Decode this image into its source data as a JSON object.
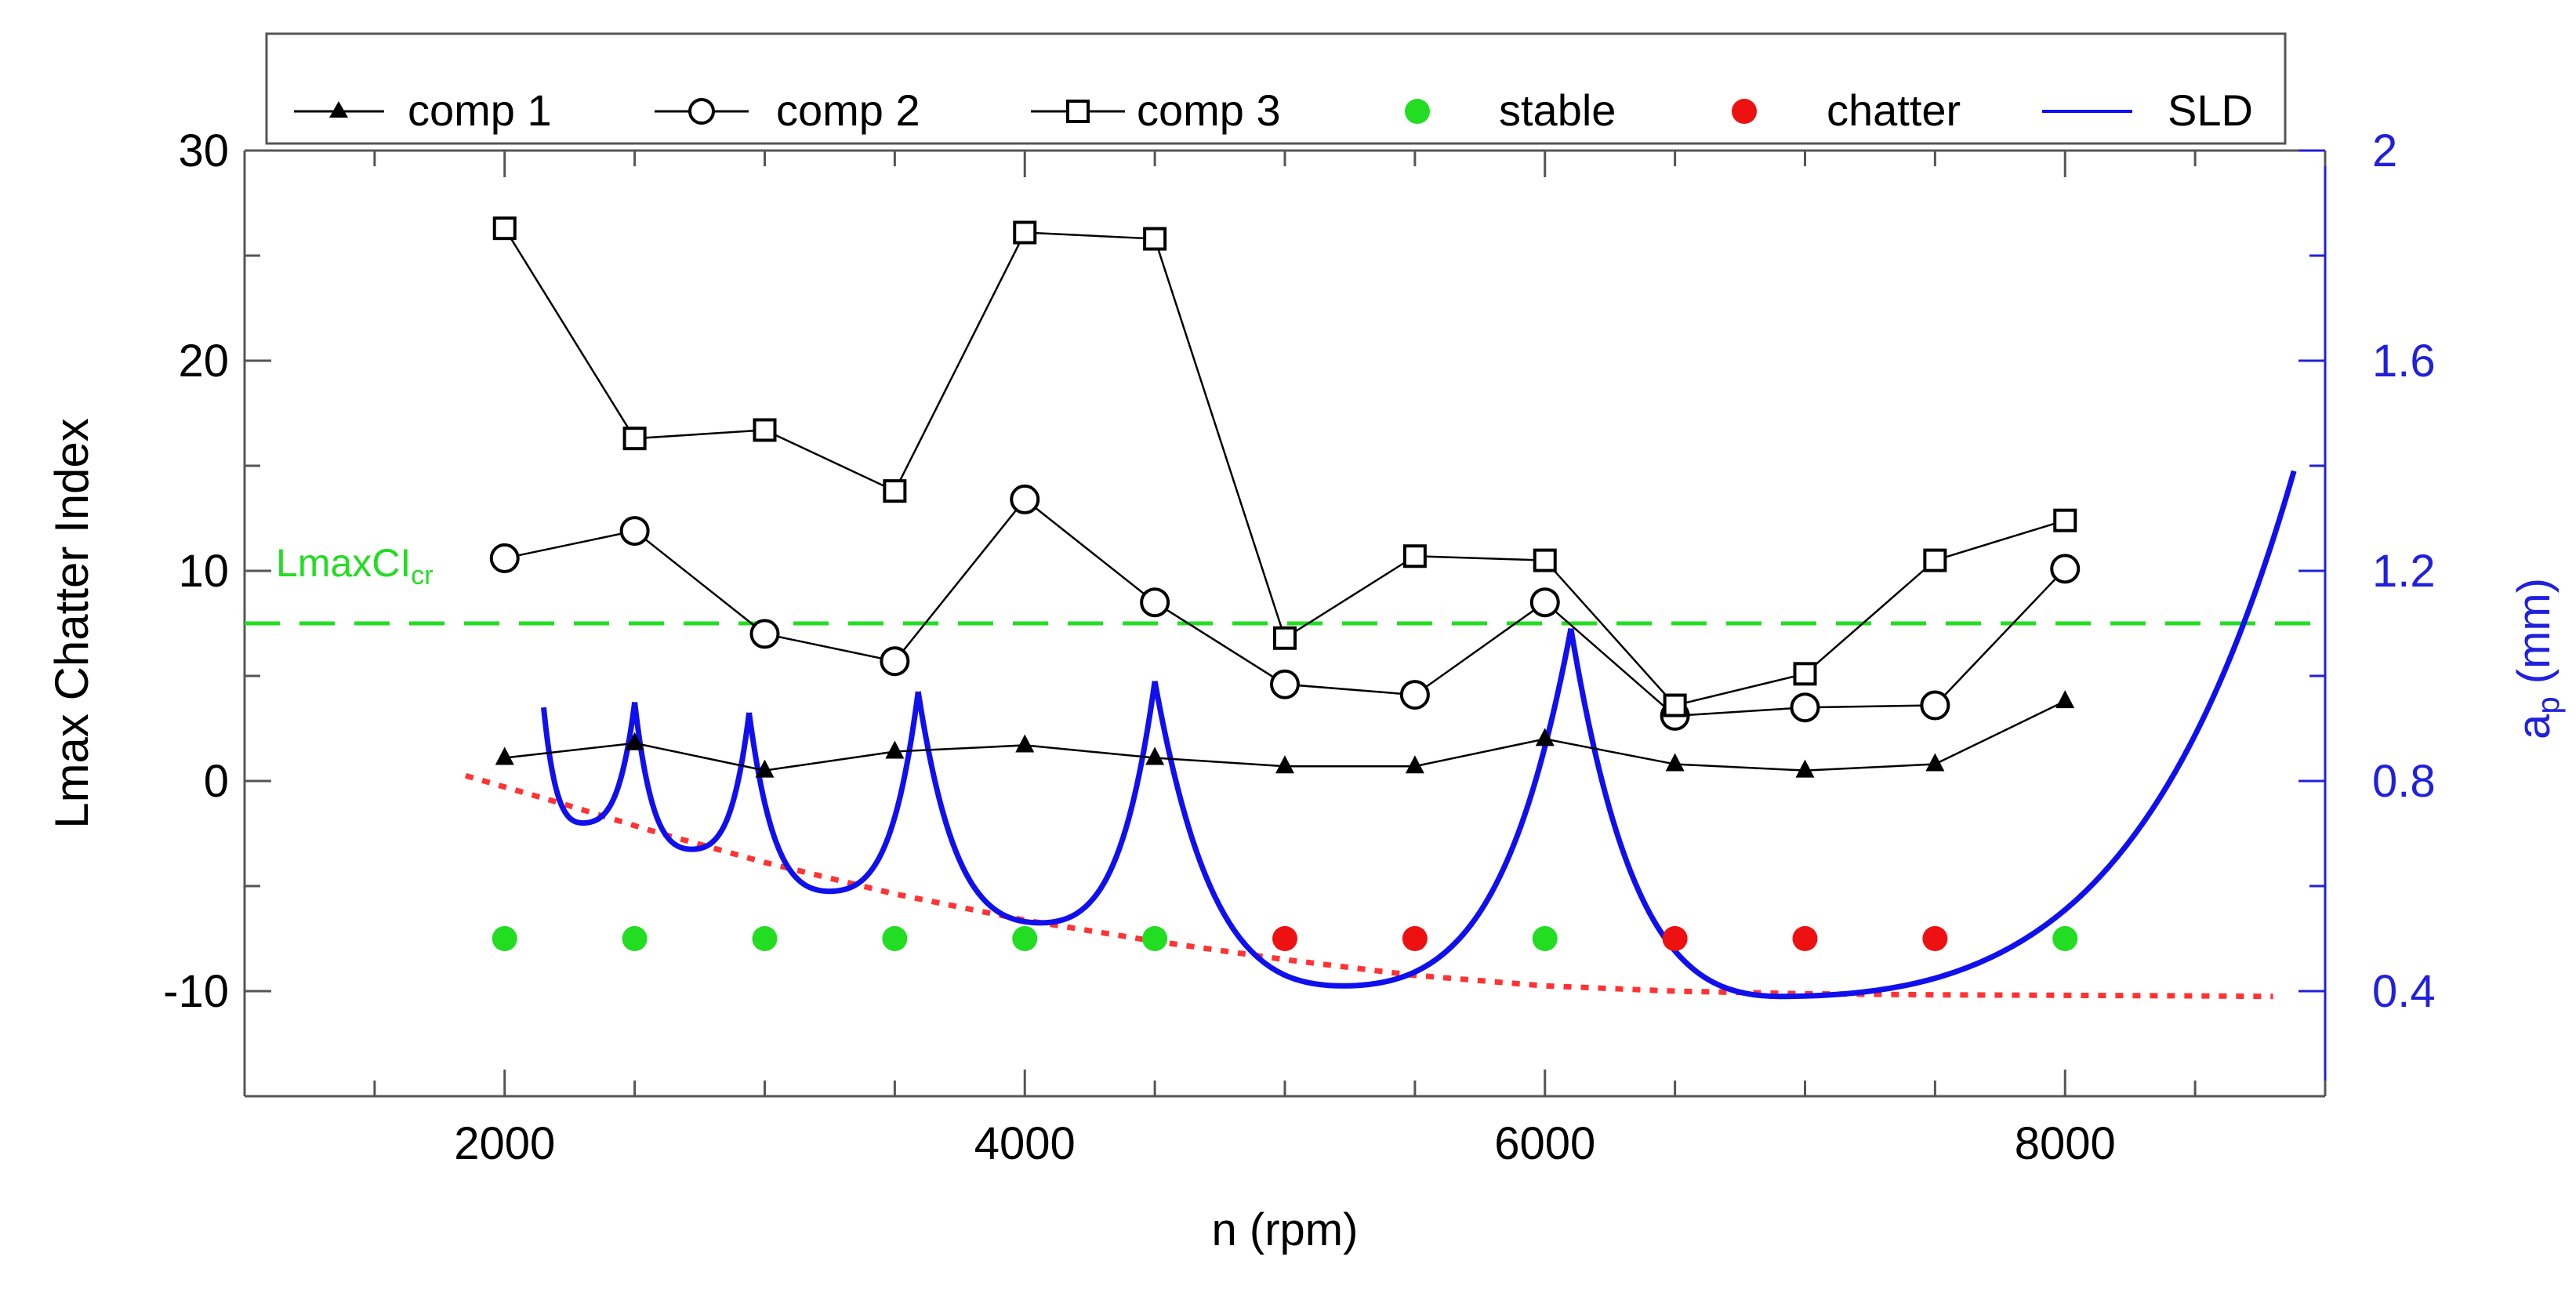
{
  "chart_data": {
    "type": "line",
    "x": [
      2000,
      2500,
      3000,
      3500,
      4000,
      4500,
      5000,
      5500,
      6000,
      6500,
      7000,
      7500,
      8000
    ],
    "xlabel": "n (rpm)",
    "xlim": [
      1000,
      9000
    ],
    "xticks": [
      2000,
      4000,
      6000,
      8000
    ],
    "xtick_labels": [
      "2000",
      "4000",
      "6000",
      "8000"
    ],
    "ylabel": "Lmax Chatter Index",
    "ylim": [
      -15,
      30
    ],
    "yticks": [
      -10,
      0,
      10,
      20,
      30
    ],
    "ytick_labels": [
      "-10",
      "0",
      "10",
      "20",
      "30"
    ],
    "y2label_main": "a",
    "y2label_sub": "p",
    "y2label_rest": " (mm)",
    "y2lim": [
      0.2,
      2.0
    ],
    "y2ticks": [
      0.4,
      0.8,
      1.2,
      1.6,
      2.0
    ],
    "y2tick_labels": [
      "0.4",
      "0.8",
      "1.2",
      "1.6",
      "2"
    ],
    "grid": false,
    "legend_position": "top",
    "series": [
      {
        "name": "comp 1",
        "marker": "triangle",
        "values": [
          1.1,
          1.8,
          0.5,
          1.4,
          1.7,
          1.1,
          0.7,
          0.7,
          2.0,
          0.8,
          0.5,
          0.8,
          3.8
        ]
      },
      {
        "name": "comp 2",
        "marker": "circle",
        "values": [
          10.6,
          11.9,
          7.0,
          5.7,
          13.4,
          8.5,
          4.6,
          4.1,
          8.5,
          3.1,
          3.5,
          3.6,
          10.1
        ]
      },
      {
        "name": "comp 3",
        "marker": "square",
        "values": [
          26.3,
          16.3,
          16.7,
          13.8,
          26.1,
          25.8,
          6.8,
          10.7,
          10.5,
          3.6,
          5.1,
          10.5,
          12.4
        ]
      }
    ],
    "stability": {
      "stable_label": "stable",
      "chatter_label": "chatter",
      "stable_color": "#22dd22",
      "chatter_color": "#ee1111",
      "y_value": -7.5,
      "points": [
        {
          "x": 2000,
          "state": "stable"
        },
        {
          "x": 2500,
          "state": "stable"
        },
        {
          "x": 3000,
          "state": "stable"
        },
        {
          "x": 3500,
          "state": "stable"
        },
        {
          "x": 4000,
          "state": "stable"
        },
        {
          "x": 4500,
          "state": "stable"
        },
        {
          "x": 5000,
          "state": "chatter"
        },
        {
          "x": 5500,
          "state": "chatter"
        },
        {
          "x": 6000,
          "state": "stable"
        },
        {
          "x": 6500,
          "state": "chatter"
        },
        {
          "x": 7000,
          "state": "chatter"
        },
        {
          "x": 7500,
          "state": "chatter"
        },
        {
          "x": 8000,
          "state": "stable"
        }
      ]
    },
    "threshold": {
      "label_main": "LmaxCI",
      "label_sub": "cr",
      "value": 7.5,
      "color": "#22dd22"
    },
    "sld": {
      "name": "SLD",
      "color": "#1010ee",
      "lobes": [
        {
          "start": [
            2150,
            0.94
          ],
          "min": [
            2300,
            0.72
          ],
          "peak": [
            2500,
            0.95
          ]
        },
        {
          "start": [
            2500,
            0.95
          ],
          "min": [
            2720,
            0.67
          ],
          "peak": [
            2940,
            0.93
          ]
        },
        {
          "start": [
            2940,
            0.93
          ],
          "min": [
            3250,
            0.59
          ],
          "peak": [
            3590,
            0.97
          ]
        },
        {
          "start": [
            3590,
            0.97
          ],
          "min": [
            4060,
            0.53
          ],
          "peak": [
            4500,
            0.99
          ]
        },
        {
          "start": [
            4500,
            0.99
          ],
          "min": [
            5220,
            0.41
          ],
          "peak": [
            6100,
            1.09
          ]
        },
        {
          "start": [
            6100,
            1.09
          ],
          "min": [
            6900,
            0.39
          ],
          "end": [
            8880,
            1.39
          ]
        }
      ]
    },
    "stability_limit": {
      "color": "#ff3333",
      "x": [
        1850,
        2200,
        2600,
        3000,
        3500,
        4000,
        4500,
        5000,
        5500,
        6000,
        6500,
        7000,
        7500,
        8000,
        8500,
        8800
      ],
      "y": [
        0.81,
        0.76,
        0.7,
        0.645,
        0.585,
        0.535,
        0.495,
        0.46,
        0.43,
        0.41,
        0.4,
        0.395,
        0.393,
        0.392,
        0.391,
        0.39
      ]
    },
    "legend": [
      "comp 1",
      "comp 2",
      "comp 3",
      "stable",
      "chatter",
      "SLD"
    ]
  }
}
